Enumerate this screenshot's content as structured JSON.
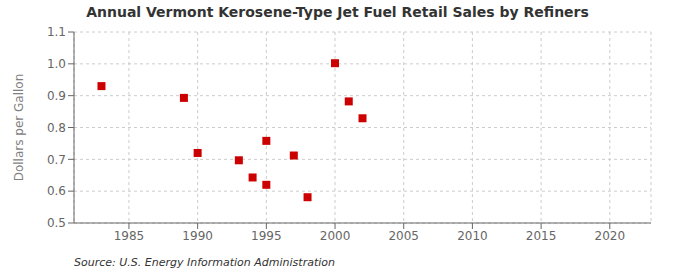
{
  "chart_data": {
    "type": "scatter",
    "title": "Annual Vermont Kerosene-Type Jet Fuel Retail Sales by Refiners",
    "ylabel": "Dollars per Gallon",
    "annotation": "Source: U.S. Energy Information Administration",
    "x": [
      1983,
      1989,
      1990,
      1993,
      1994,
      1995,
      1995,
      1997,
      1998,
      2000,
      2001,
      2002
    ],
    "values": [
      0.93,
      0.893,
      0.72,
      0.697,
      0.643,
      0.62,
      0.758,
      0.712,
      0.581,
      1.002,
      0.882,
      0.829
    ],
    "color": "#cc0000",
    "marker": "square",
    "xlim": [
      1981,
      2023
    ],
    "ylim": [
      0.5,
      1.1
    ],
    "xticks": [
      1985,
      1990,
      1995,
      2000,
      2005,
      2010,
      2015,
      2020
    ],
    "yticks": [
      0.5,
      0.6,
      0.7,
      0.8,
      0.9,
      {
        "value": 1,
        "label": "1.0"
      },
      1.1
    ],
    "grid": true
  }
}
